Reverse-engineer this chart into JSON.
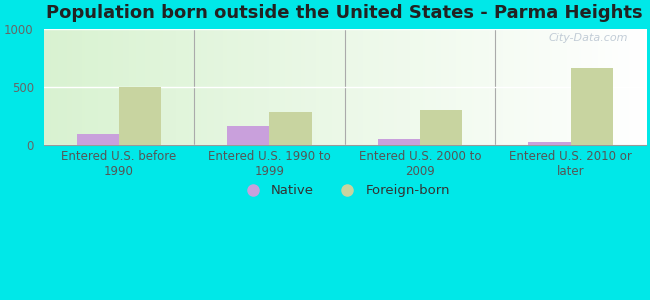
{
  "title": "Population born outside the United States - Parma Heights",
  "categories": [
    "Entered U.S. before\n1990",
    "Entered U.S. 1990 to\n1999",
    "Entered U.S. 2000 to\n2009",
    "Entered U.S. 2010 or\nlater"
  ],
  "native_values": [
    100,
    165,
    55,
    30
  ],
  "foreign_values": [
    500,
    290,
    305,
    670
  ],
  "native_color": "#c9a0dc",
  "foreign_color": "#c8d4a0",
  "background_outer": "#00e8e8",
  "ylim": [
    0,
    1000
  ],
  "yticks": [
    0,
    500,
    1000
  ],
  "title_fontsize": 13,
  "tick_label_fontsize": 8.5,
  "legend_fontsize": 9.5,
  "watermark": "City-Data.com",
  "bar_width": 0.28
}
